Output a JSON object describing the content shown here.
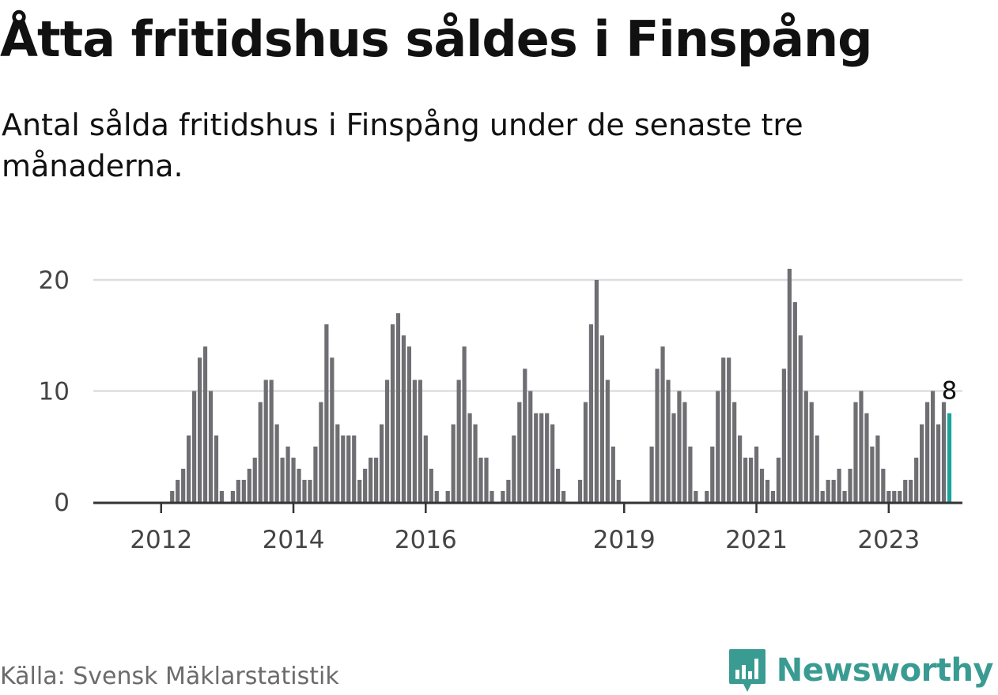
{
  "title": "Åtta fritidshus såldes i Finspång",
  "subtitle": "Antal sålda fritidshus i Finspång under de senaste tre månaderna.",
  "source": "Källa: Svensk Mäklarstatistik",
  "brand": {
    "name": "Newsworthy",
    "logo_icon": "bar-chart-badge-icon",
    "color": "#3a9b92"
  },
  "chart_data": {
    "type": "bar",
    "title": "Åtta fritidshus såldes i Finspång",
    "ylim": [
      0,
      20
    ],
    "y_ticks": [
      0,
      10,
      20
    ],
    "grid": true,
    "x_tick_labels": [
      {
        "label": "2012",
        "index": 11
      },
      {
        "label": "2014",
        "index": 35
      },
      {
        "label": "2016",
        "index": 59
      },
      {
        "label": "2019",
        "index": 95
      },
      {
        "label": "2021",
        "index": 119
      },
      {
        "label": "2023",
        "index": 143
      }
    ],
    "bar_color": "#6e6e73",
    "highlight_color": "#1aa39a",
    "highlight_label": "8",
    "values": [
      0,
      0,
      0,
      0,
      0,
      0,
      0,
      0,
      0,
      0,
      0,
      0,
      0,
      1,
      2,
      3,
      6,
      10,
      13,
      14,
      10,
      6,
      1,
      0,
      1,
      2,
      2,
      3,
      4,
      9,
      11,
      11,
      7,
      4,
      5,
      4,
      3,
      2,
      2,
      5,
      9,
      16,
      13,
      7,
      6,
      6,
      6,
      2,
      3,
      4,
      4,
      7,
      11,
      16,
      17,
      15,
      14,
      11,
      11,
      6,
      3,
      1,
      0,
      1,
      7,
      11,
      14,
      8,
      7,
      4,
      4,
      1,
      0,
      1,
      2,
      6,
      9,
      12,
      10,
      8,
      8,
      8,
      7,
      3,
      1,
      0,
      0,
      2,
      9,
      16,
      20,
      15,
      11,
      5,
      2,
      0,
      0,
      0,
      0,
      0,
      5,
      12,
      14,
      11,
      8,
      10,
      9,
      5,
      1,
      0,
      1,
      5,
      10,
      13,
      13,
      9,
      6,
      4,
      4,
      5,
      3,
      2,
      1,
      4,
      12,
      21,
      18,
      15,
      10,
      9,
      6,
      1,
      2,
      2,
      3,
      1,
      3,
      9,
      10,
      8,
      5,
      6,
      3,
      1,
      1,
      1,
      2,
      2,
      4,
      7,
      9,
      10,
      7,
      9,
      8
    ]
  }
}
